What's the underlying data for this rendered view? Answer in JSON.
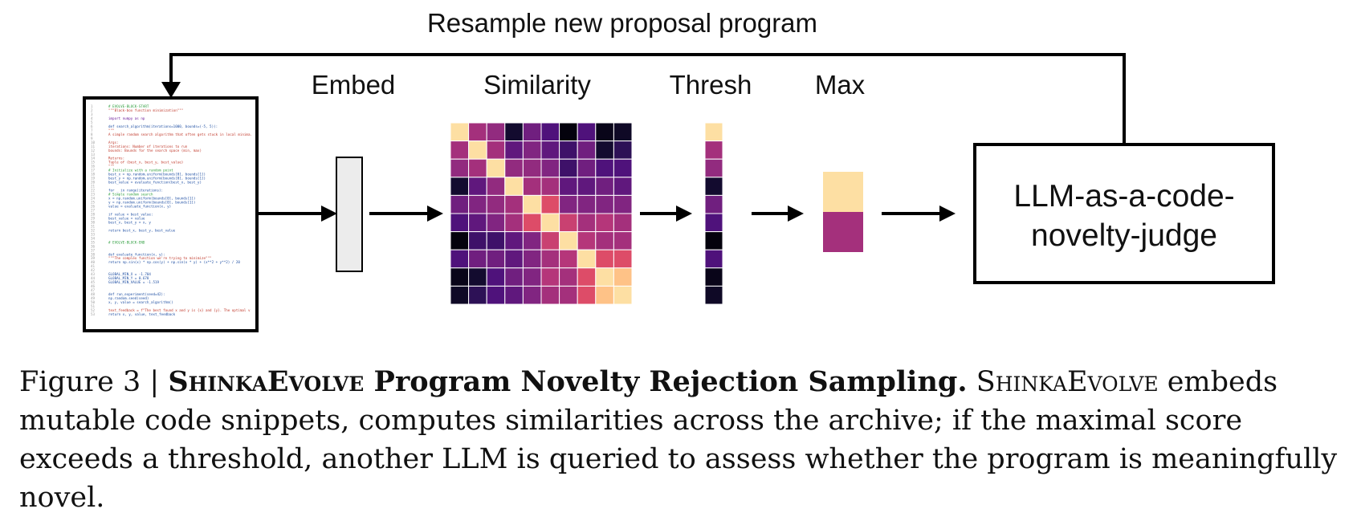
{
  "diagram": {
    "top_label": "Resample new proposal program",
    "embed_label": "Embed",
    "similarity_label": "Similarity",
    "thresh_label": "Thresh",
    "max_label": "Max",
    "judge_label_line1": "LLM-as-a-code-",
    "judge_label_line2": "novelty-judge",
    "code_lines": [
      {
        "t": "# EVOLVE-BLOCK-START",
        "c": "#2e9e3e"
      },
      {
        "t": "\"\"\"Black-box function minimization\"\"\"",
        "c": "#c0392b"
      },
      {
        "t": "",
        "c": "#333"
      },
      {
        "t": "import numpy as np",
        "c": "#6a1b9a"
      },
      {
        "t": "",
        "c": "#333"
      },
      {
        "t": "def search_algorithm(iterations=1000, bounds=(-5, 5)):",
        "c": "#1f4fa3"
      },
      {
        "t": "    \"\"\"",
        "c": "#c0392b"
      },
      {
        "t": "    A simple random search algorithm that often gets stuck in local minima.",
        "c": "#c0392b"
      },
      {
        "t": "",
        "c": "#333"
      },
      {
        "t": "    Args:",
        "c": "#c0392b"
      },
      {
        "t": "        iterations: Number of iterations to run",
        "c": "#c0392b"
      },
      {
        "t": "        bounds: Bounds for the search space (min, max)",
        "c": "#c0392b"
      },
      {
        "t": "",
        "c": "#333"
      },
      {
        "t": "    Returns:",
        "c": "#c0392b"
      },
      {
        "t": "        Tuple of (best_x, best_y, best_value)",
        "c": "#c0392b"
      },
      {
        "t": "    \"\"\"",
        "c": "#c0392b"
      },
      {
        "t": "    # Initialize with a random point",
        "c": "#2e9e3e"
      },
      {
        "t": "    best_x = np.random.uniform(bounds[0], bounds[1])",
        "c": "#1f4fa3"
      },
      {
        "t": "    best_y = np.random.uniform(bounds[0], bounds[1])",
        "c": "#1f4fa3"
      },
      {
        "t": "    best_value = evaluate_function(best_x, best_y)",
        "c": "#1f4fa3"
      },
      {
        "t": "",
        "c": "#333"
      },
      {
        "t": "    for _ in range(iterations):",
        "c": "#1f4fa3"
      },
      {
        "t": "        # Simple random search",
        "c": "#2e9e3e"
      },
      {
        "t": "        x = np.random.uniform(bounds[0], bounds[1])",
        "c": "#1f4fa3"
      },
      {
        "t": "        y = np.random.uniform(bounds[0], bounds[1])",
        "c": "#1f4fa3"
      },
      {
        "t": "        value = evaluate_function(x, y)",
        "c": "#1f4fa3"
      },
      {
        "t": "",
        "c": "#333"
      },
      {
        "t": "        if value < best_value:",
        "c": "#1f4fa3"
      },
      {
        "t": "            best_value = value",
        "c": "#1f4fa3"
      },
      {
        "t": "            best_x, best_y = x, y",
        "c": "#1f4fa3"
      },
      {
        "t": "",
        "c": "#333"
      },
      {
        "t": "    return best_x, best_y, best_value",
        "c": "#1f4fa3"
      },
      {
        "t": "",
        "c": "#333"
      },
      {
        "t": "",
        "c": "#333"
      },
      {
        "t": "# EVOLVE-BLOCK-END",
        "c": "#2e9e3e"
      },
      {
        "t": "",
        "c": "#333"
      },
      {
        "t": "",
        "c": "#333"
      },
      {
        "t": "def evaluate_function(x, y):",
        "c": "#1f4fa3"
      },
      {
        "t": "    \"\"\"The complex function we're trying to minimize\"\"\"",
        "c": "#c0392b"
      },
      {
        "t": "    return np.sin(x) * np.cos(y) + np.sin(x * y) + (x**2 + y**2) / 20",
        "c": "#1f4fa3"
      },
      {
        "t": "",
        "c": "#333"
      },
      {
        "t": "",
        "c": "#333"
      },
      {
        "t": "GLOBAL_MIN_X = -1.704",
        "c": "#1f4fa3"
      },
      {
        "t": "GLOBAL_MIN_Y = 0.678",
        "c": "#1f4fa3"
      },
      {
        "t": "GLOBAL_MIN_VALUE = -1.519",
        "c": "#1f4fa3"
      },
      {
        "t": "",
        "c": "#333"
      },
      {
        "t": "",
        "c": "#333"
      },
      {
        "t": "def run_experiment(seed=42):",
        "c": "#1f4fa3"
      },
      {
        "t": "    np.random.seed(seed)",
        "c": "#1f4fa3"
      },
      {
        "t": "    x, y, value = search_algorithm()",
        "c": "#1f4fa3"
      },
      {
        "t": "",
        "c": "#333"
      },
      {
        "t": "    text_feedback = f\"The best found x and y is {x} and {y}. The optimal v",
        "c": "#c0392b"
      },
      {
        "t": "    return x, y, value, text_feedback",
        "c": "#1f4fa3"
      }
    ],
    "similarity_matrix": [
      [
        0.95,
        0.55,
        0.5,
        0.1,
        0.4,
        0.3,
        0.02,
        0.3,
        0.05,
        0.08
      ],
      [
        0.55,
        0.95,
        0.55,
        0.35,
        0.45,
        0.35,
        0.25,
        0.4,
        0.1,
        0.2
      ],
      [
        0.5,
        0.55,
        0.95,
        0.5,
        0.5,
        0.45,
        0.25,
        0.4,
        0.3,
        0.3
      ],
      [
        0.1,
        0.35,
        0.5,
        0.95,
        0.55,
        0.55,
        0.35,
        0.35,
        0.4,
        0.35
      ],
      [
        0.4,
        0.45,
        0.5,
        0.55,
        0.95,
        0.7,
        0.45,
        0.45,
        0.45,
        0.45
      ],
      [
        0.3,
        0.35,
        0.45,
        0.55,
        0.7,
        0.95,
        0.65,
        0.55,
        0.6,
        0.55
      ],
      [
        0.02,
        0.25,
        0.25,
        0.35,
        0.45,
        0.65,
        0.95,
        0.6,
        0.55,
        0.55
      ],
      [
        0.3,
        0.4,
        0.4,
        0.35,
        0.45,
        0.55,
        0.6,
        0.95,
        0.7,
        0.7
      ],
      [
        0.05,
        0.1,
        0.3,
        0.4,
        0.45,
        0.6,
        0.55,
        0.7,
        0.95,
        0.9
      ],
      [
        0.08,
        0.2,
        0.3,
        0.35,
        0.45,
        0.55,
        0.55,
        0.7,
        0.9,
        0.95
      ]
    ],
    "thresh_vector": [
      0.95,
      0.55,
      0.5,
      0.1,
      0.4,
      0.3,
      0.02,
      0.3,
      0.05,
      0.08
    ],
    "max_values": [
      0.95,
      0.55
    ]
  },
  "caption": {
    "prefix": "Figure 3 | ",
    "title_sc1": "Shinka",
    "title_sc2": "Evolve",
    "title_rest": " Program Novelty Rejection Sampling.",
    "body_sc1": "Shinka",
    "body_sc2": "Evolve",
    "body_text": " embeds mutable code snippets, computes similarities across the archive; if the maximal score exceeds a threshold, another LLM is queried to assess whether the program is meaningfully novel."
  }
}
